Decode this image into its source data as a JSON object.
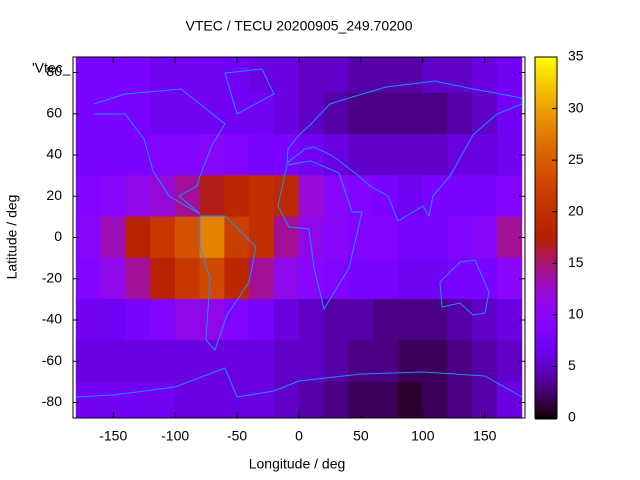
{
  "chart_data": {
    "type": "heatmap",
    "title": "VTEC / TECU 20200905_249.70200",
    "key_label": "'Vtec_",
    "x_label": "Longitude / deg",
    "y_label": "Latitude / deg",
    "xlim": [
      -182.5,
      182.5
    ],
    "xticks": [
      -150,
      -100,
      -50,
      0,
      50,
      100,
      150
    ],
    "ylim": [
      -87.5,
      87.5
    ],
    "yticks": [
      -80,
      -60,
      -40,
      -20,
      0,
      20,
      40,
      60,
      80
    ],
    "colorbar_lim": [
      0,
      35
    ],
    "colorbar_ticks": [
      0,
      5,
      10,
      15,
      20,
      25,
      30,
      35
    ],
    "x": [
      -170,
      -150,
      -130,
      -110,
      -90,
      -70,
      -50,
      -30,
      -10,
      10,
      30,
      50,
      70,
      90,
      110,
      130,
      150,
      170
    ],
    "y": [
      80,
      60,
      40,
      20,
      0,
      -20,
      -40,
      -60,
      -80
    ],
    "values": [
      [
        8,
        8,
        8,
        7,
        7,
        7,
        7,
        6,
        6,
        5,
        5,
        4,
        4,
        4,
        5,
        5,
        6,
        7
      ],
      [
        8,
        8,
        8,
        7,
        7,
        7,
        7,
        7,
        6,
        5,
        4,
        3,
        3,
        3,
        3,
        4,
        5,
        7
      ],
      [
        8,
        8,
        8,
        9,
        9,
        10,
        9,
        8,
        8,
        7,
        6,
        5,
        5,
        5,
        5,
        6,
        6,
        7
      ],
      [
        9,
        10,
        11,
        12,
        14,
        17,
        19,
        20,
        19,
        12,
        10,
        9,
        8,
        7,
        8,
        8,
        8,
        9
      ],
      [
        10,
        13,
        18,
        21,
        24,
        28,
        22,
        20,
        14,
        11,
        10,
        9,
        9,
        8,
        8,
        9,
        10,
        14
      ],
      [
        9,
        11,
        14,
        18,
        21,
        23,
        19,
        14,
        11,
        10,
        9,
        8,
        8,
        7,
        7,
        8,
        8,
        10
      ],
      [
        7,
        7,
        8,
        9,
        11,
        11,
        9,
        8,
        6,
        5,
        4,
        4,
        3,
        3,
        3,
        4,
        5,
        6
      ],
      [
        6,
        6,
        6,
        6,
        6,
        6,
        6,
        6,
        5,
        5,
        4,
        3,
        3,
        2,
        2,
        3,
        4,
        5
      ],
      [
        7,
        7,
        7,
        7,
        6,
        6,
        6,
        6,
        5,
        4,
        3,
        2,
        2,
        1,
        2,
        3,
        4,
        6
      ]
    ]
  }
}
